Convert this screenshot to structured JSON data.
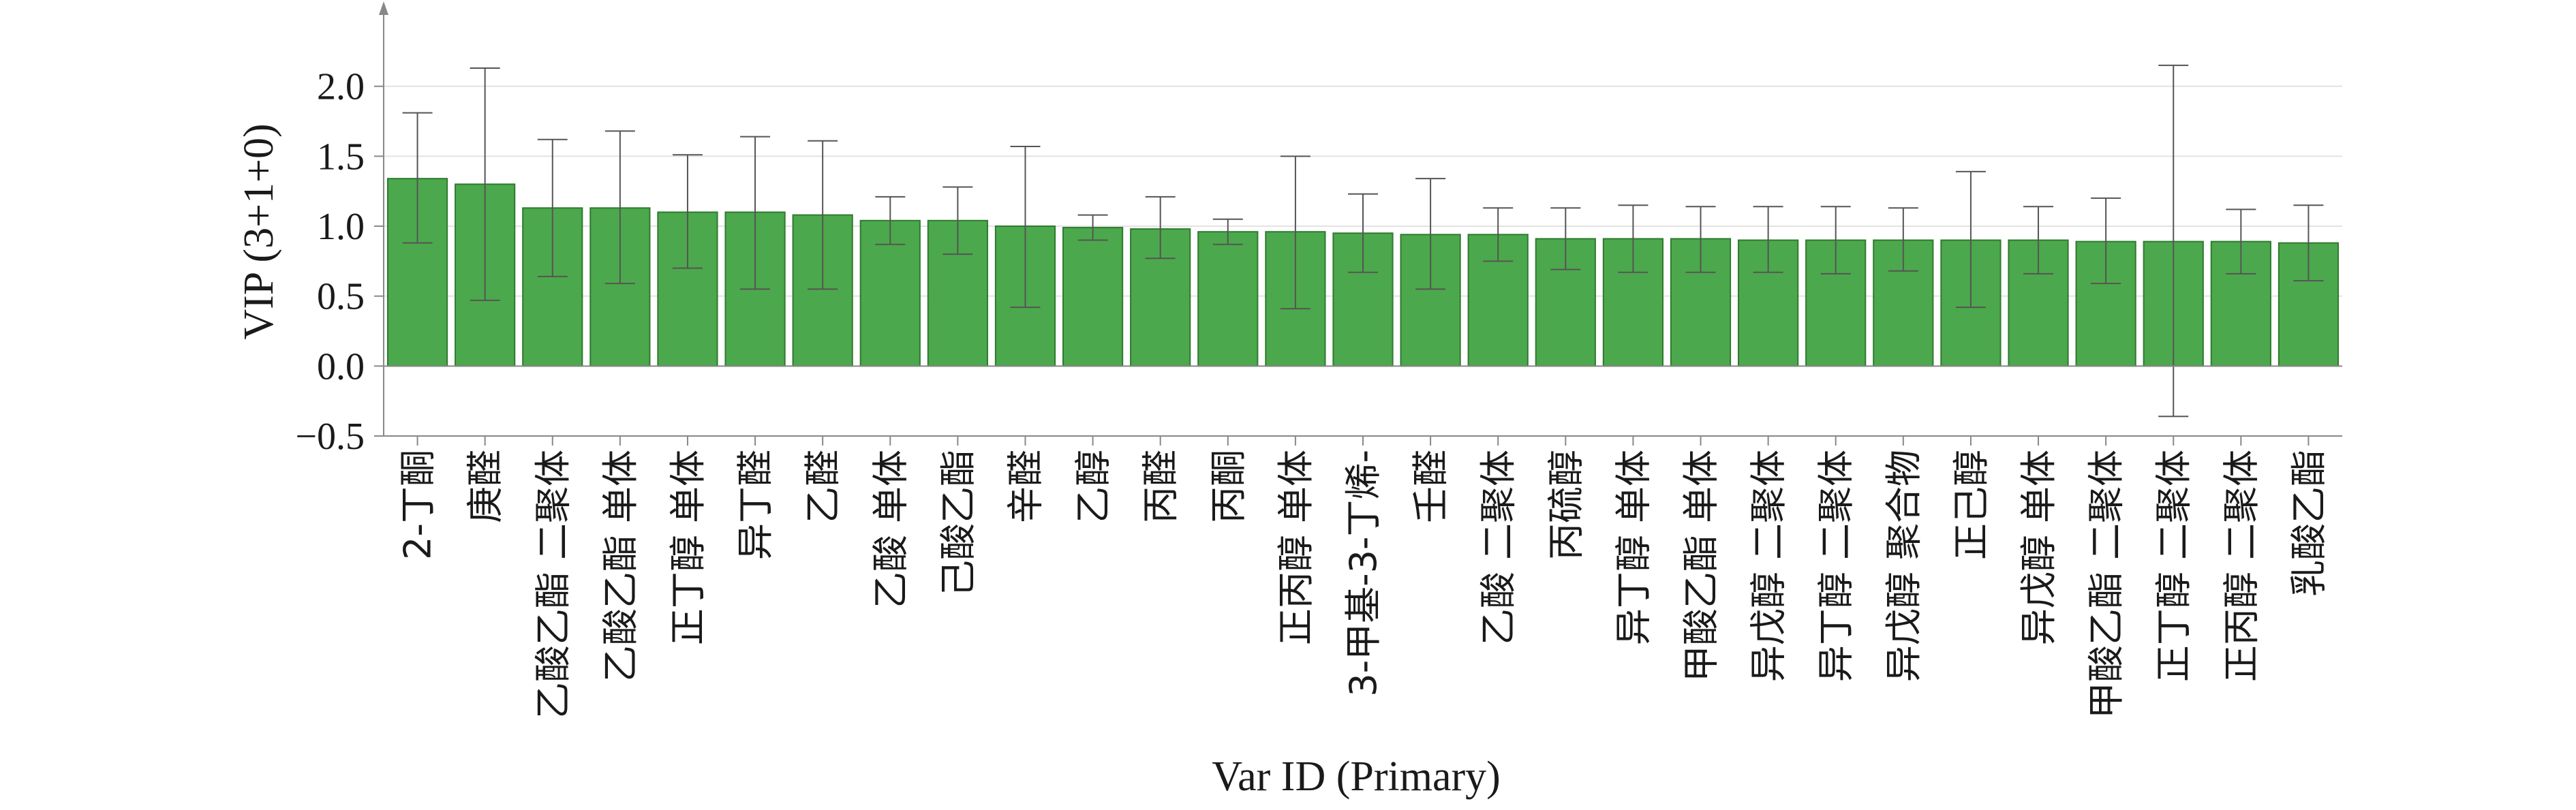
{
  "chart_data": {
    "type": "bar",
    "xlabel": "Var ID (Primary)",
    "ylabel": "VIP (3+1+0)",
    "ylim": [
      -0.5,
      2.5
    ],
    "yticks": [
      "−0.5",
      "0.0",
      "0.5",
      "1.0",
      "1.5",
      "2.0"
    ],
    "ytick_values": [
      -0.5,
      0.0,
      0.5,
      1.0,
      1.5,
      2.0
    ],
    "grid": "horizontal",
    "bar_color": "#4ca84c",
    "bar_edge_color": "#2f7a2f",
    "error_bar_color": "#555555",
    "categories": [
      "2-丁酮",
      "庚醛",
      "乙酸乙酯 二聚体",
      "乙酸乙酯 单体",
      "正丁醇 单体",
      "异丁醛",
      "乙醛",
      "乙酸 单体",
      "己酸乙酯",
      "辛醛",
      "乙醇",
      "丙醛",
      "丙酮",
      "正丙醇 单体",
      "3-甲基-3-丁烯-",
      "壬醛",
      "乙酸 二聚体",
      "丙硫醇",
      "异丁醇 单体",
      "甲酸乙酯 单体",
      "异戊醇 二聚体",
      "异丁醇 二聚体",
      "异戊醇 聚合物",
      "正己醇",
      "异戊醇 单体",
      "甲酸乙酯 二聚体",
      "正丁醇 二聚体",
      "正丙醇 二聚体",
      "乳酸乙酯"
    ],
    "values": [
      1.34,
      1.3,
      1.13,
      1.13,
      1.1,
      1.1,
      1.08,
      1.04,
      1.04,
      1.0,
      0.99,
      0.98,
      0.96,
      0.96,
      0.95,
      0.94,
      0.94,
      0.91,
      0.91,
      0.91,
      0.9,
      0.9,
      0.9,
      0.9,
      0.9,
      0.89,
      0.89,
      0.89,
      0.88
    ],
    "error_low": [
      0.88,
      0.47,
      0.64,
      0.59,
      0.7,
      0.55,
      0.55,
      0.87,
      0.8,
      0.42,
      0.9,
      0.77,
      0.87,
      0.41,
      0.67,
      0.55,
      0.75,
      0.69,
      0.67,
      0.67,
      0.67,
      0.66,
      0.68,
      0.42,
      0.66,
      0.59,
      -0.36,
      0.66,
      0.61
    ],
    "error_high": [
      1.81,
      2.13,
      1.62,
      1.68,
      1.51,
      1.64,
      1.61,
      1.21,
      1.28,
      1.57,
      1.08,
      1.21,
      1.05,
      1.5,
      1.23,
      1.34,
      1.13,
      1.13,
      1.15,
      1.14,
      1.14,
      1.14,
      1.13,
      1.39,
      1.14,
      1.2,
      2.15,
      1.12,
      1.15
    ]
  }
}
